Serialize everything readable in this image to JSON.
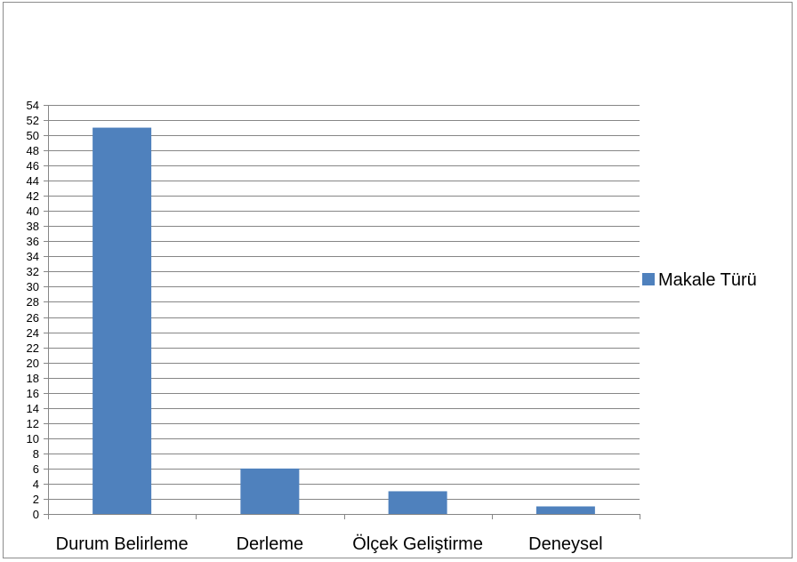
{
  "chart_data": {
    "type": "bar",
    "categories": [
      "Durum Belirleme",
      "Derleme",
      "Ölçek Geliştirme",
      "Deneysel"
    ],
    "series": [
      {
        "name": "Makale Türü",
        "values": [
          51,
          6,
          3,
          1
        ],
        "color": "#4f81bd"
      }
    ],
    "title": "",
    "xlabel": "",
    "ylabel": "",
    "ylim": [
      0,
      54
    ],
    "ytick_step": 2,
    "grid": true,
    "legend_position": "right"
  }
}
